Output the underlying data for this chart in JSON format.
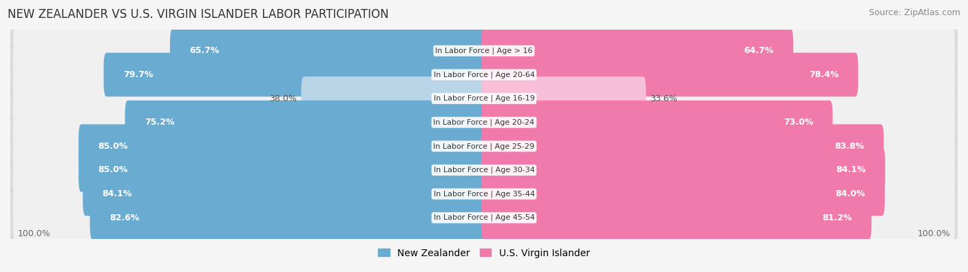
{
  "title": "NEW ZEALANDER VS U.S. VIRGIN ISLANDER LABOR PARTICIPATION",
  "source": "Source: ZipAtlas.com",
  "categories": [
    "In Labor Force | Age > 16",
    "In Labor Force | Age 20-64",
    "In Labor Force | Age 16-19",
    "In Labor Force | Age 20-24",
    "In Labor Force | Age 25-29",
    "In Labor Force | Age 30-34",
    "In Labor Force | Age 35-44",
    "In Labor Force | Age 45-54"
  ],
  "nz_values": [
    65.7,
    79.7,
    38.0,
    75.2,
    85.0,
    85.0,
    84.1,
    82.6
  ],
  "vi_values": [
    64.7,
    78.4,
    33.6,
    73.0,
    83.8,
    84.1,
    84.0,
    81.2
  ],
  "nz_color_dark": "#6aabd2",
  "nz_color_light": "#bad4e8",
  "vi_color_dark": "#f07baa",
  "vi_color_light": "#f8c0d8",
  "label_color_white": "#ffffff",
  "label_color_dark": "#555555",
  "threshold": 50.0,
  "max_val": 100.0,
  "fig_bg": "#f5f5f5",
  "row_bg": "#e8e8e8",
  "row_inner_bg": "#f8f8f8",
  "title_fontsize": 12,
  "source_fontsize": 9,
  "bar_label_fontsize": 9,
  "cat_label_fontsize": 8,
  "legend_fontsize": 10,
  "footer_label": "100.0%",
  "legend_nz": "New Zealander",
  "legend_vi": "U.S. Virgin Islander"
}
